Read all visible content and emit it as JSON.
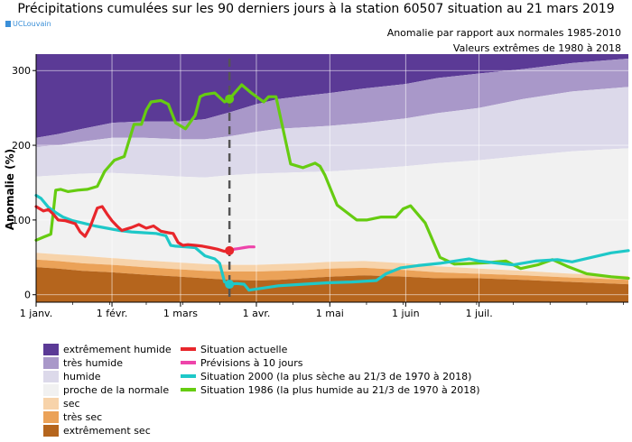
{
  "title": "Précipitations cumulées sur les 90 derniers jours à la station 60507 situation au 21 mars 2019",
  "logo_text": "UCLouvain",
  "subtitle1": "Anomalie par rapport aux normales 1985-2010",
  "subtitle2": "Valeurs extrêmes de 1980 à 2018",
  "colors": {
    "extreme_humide": "#5b3a96",
    "tres_humide": "#a998c9",
    "humide": "#dcd9ea",
    "normale": "#f1f1f1",
    "sec": "#f7d3aa",
    "tres_sec": "#eba258",
    "extreme_sec": "#b5651d",
    "actuelle": "#e8262b",
    "previsions": "#ee44aa",
    "s2000": "#1ec8c8",
    "s1986": "#66cc11"
  },
  "legend": {
    "bands": [
      {
        "label": "extrêmement humide",
        "color": "#5b3a96"
      },
      {
        "label": "très humide",
        "color": "#a998c9"
      },
      {
        "label": "humide",
        "color": "#dcd9ea"
      },
      {
        "label": "proche de la normale",
        "color": "#f1f1f1"
      },
      {
        "label": "sec",
        "color": "#f7d3aa"
      },
      {
        "label": "très sec",
        "color": "#eba258"
      },
      {
        "label": "extrêmement sec",
        "color": "#b5651d"
      }
    ],
    "lines": [
      {
        "label": "Situation actuelle",
        "color": "#e8262b"
      },
      {
        "label": "Prévisions à 10 jours",
        "color": "#ee44aa"
      },
      {
        "label": "Situation 2000 (la plus sèche au 21/3 de 1970 à 2018)",
        "color": "#1ec8c8"
      },
      {
        "label": "Situation 1986 (la plus humide au 21/3 de 1970 à 2018)",
        "color": "#66cc11"
      }
    ]
  },
  "chart_data": {
    "type": "area",
    "title": "Précipitations cumulées sur les 90 derniers jours à la station 60507 situation au 21 mars 2019",
    "ylabel": "Anomalie (%)",
    "xlabel": "",
    "xlim_days": [
      1,
      243
    ],
    "ylim": [
      -10,
      322
    ],
    "yticks": [
      0,
      100,
      200,
      300
    ],
    "xticks": [
      {
        "day": 1,
        "label": "1 janv."
      },
      {
        "day": 32,
        "label": "1 févr."
      },
      {
        "day": 60,
        "label": "1 mars"
      },
      {
        "day": 91,
        "label": "1 avr."
      },
      {
        "day": 121,
        "label": "1 mai"
      },
      {
        "day": 152,
        "label": "1 juin"
      },
      {
        "day": 182,
        "label": "1 juil."
      }
    ],
    "current_day": 80,
    "band_x": [
      1,
      10,
      20,
      32,
      45,
      60,
      70,
      80,
      91,
      100,
      110,
      121,
      135,
      152,
      165,
      182,
      200,
      220,
      243
    ],
    "bands": {
      "extreme_sec_upper": [
        37,
        35,
        32,
        30,
        27,
        24,
        22,
        20,
        19,
        20,
        22,
        24,
        26,
        24,
        22,
        22,
        20,
        17,
        14
      ],
      "tres_sec_upper": [
        47,
        45,
        42,
        40,
        37,
        34,
        32,
        31,
        31,
        32,
        33,
        35,
        36,
        33,
        30,
        28,
        26,
        23,
        20
      ],
      "sec_upper": [
        56,
        54,
        52,
        49,
        46,
        43,
        41,
        40,
        40,
        41,
        42,
        44,
        45,
        42,
        38,
        35,
        32,
        28,
        25
      ],
      "normale_upper": [
        158,
        160,
        162,
        163,
        161,
        158,
        157,
        160,
        162,
        163,
        164,
        165,
        168,
        172,
        176,
        180,
        186,
        192,
        196
      ],
      "humide_upper": [
        198,
        200,
        205,
        210,
        210,
        208,
        208,
        212,
        218,
        222,
        224,
        226,
        230,
        236,
        243,
        250,
        262,
        272,
        278
      ],
      "tres_humide_upper": [
        210,
        215,
        222,
        230,
        232,
        232,
        235,
        244,
        255,
        262,
        266,
        270,
        276,
        282,
        290,
        296,
        302,
        310,
        316
      ],
      "extreme_humide_upper": [
        322,
        322,
        322,
        322,
        322,
        322,
        322,
        322,
        322,
        322,
        322,
        322,
        322,
        322,
        322,
        322,
        322,
        322,
        322
      ]
    },
    "series": [
      {
        "name": "Situation actuelle",
        "key": "actuelle",
        "x": [
          1,
          4,
          6,
          8,
          10,
          13,
          17,
          19,
          21,
          23,
          26,
          28,
          30,
          32,
          34,
          36,
          38,
          40,
          43,
          46,
          49,
          52,
          55,
          57,
          59,
          61,
          63,
          66,
          69,
          72,
          75,
          78,
          80
        ],
        "y": [
          118,
          112,
          114,
          108,
          100,
          99,
          95,
          84,
          78,
          90,
          116,
          118,
          108,
          99,
          92,
          86,
          88,
          90,
          94,
          89,
          92,
          85,
          83,
          82,
          70,
          66,
          67,
          66,
          65,
          63,
          61,
          58,
          59
        ]
      },
      {
        "name": "Prévisions à 10 jours",
        "key": "previsions",
        "x": [
          80,
          82,
          84,
          86,
          88,
          90
        ],
        "y": [
          59,
          61,
          62,
          63,
          64,
          64
        ]
      },
      {
        "name": "Situation 2000 (la plus sèche au 21/3 de 1970 à 2018)",
        "key": "s2000",
        "x": [
          1,
          3,
          6,
          9,
          12,
          16,
          20,
          25,
          30,
          35,
          40,
          45,
          50,
          54,
          56,
          58,
          62,
          66,
          70,
          74,
          76,
          78,
          80,
          83,
          86,
          88,
          92,
          96,
          100,
          110,
          120,
          130,
          140,
          144,
          150,
          157,
          166,
          172,
          178,
          182,
          190,
          196,
          205,
          214,
          220,
          228,
          236,
          243
        ],
        "y": [
          133,
          129,
          117,
          110,
          104,
          99,
          96,
          92,
          89,
          86,
          84,
          83,
          82,
          79,
          66,
          65,
          64,
          63,
          52,
          48,
          42,
          17,
          14,
          15,
          14,
          6,
          8,
          10,
          12,
          14,
          16,
          17,
          19,
          28,
          36,
          39,
          42,
          45,
          48,
          45,
          42,
          40,
          45,
          47,
          44,
          50,
          56,
          59
        ]
      },
      {
        "name": "Situation 1986 (la plus humide au 21/3 de 1970 à 2018)",
        "key": "s1986",
        "x": [
          1,
          4,
          7,
          9,
          11,
          14,
          18,
          22,
          26,
          29,
          33,
          37,
          41,
          44,
          46,
          48,
          52,
          55,
          58,
          62,
          66,
          68,
          70,
          74,
          78,
          80,
          85,
          89,
          94,
          96,
          99,
          105,
          110,
          115,
          117,
          119,
          124,
          132,
          136,
          142,
          145,
          148,
          151,
          154,
          160,
          166,
          172,
          180,
          186,
          193,
          199,
          206,
          212,
          218,
          226,
          236,
          243
        ],
        "y": [
          73,
          77,
          81,
          140,
          141,
          138,
          140,
          141,
          145,
          165,
          180,
          185,
          228,
          228,
          247,
          258,
          260,
          255,
          230,
          222,
          240,
          265,
          268,
          270,
          258,
          262,
          281,
          270,
          258,
          265,
          265,
          175,
          170,
          176,
          172,
          160,
          120,
          100,
          100,
          104,
          104,
          104,
          115,
          119,
          96,
          50,
          41,
          42,
          43,
          45,
          35,
          40,
          47,
          38,
          28,
          24,
          22
        ]
      }
    ],
    "markers": [
      {
        "series": "actuelle",
        "x": 80,
        "y": 59
      },
      {
        "series": "s2000",
        "x": 80,
        "y": 14
      },
      {
        "series": "s1986",
        "x": 80,
        "y": 262
      }
    ]
  }
}
